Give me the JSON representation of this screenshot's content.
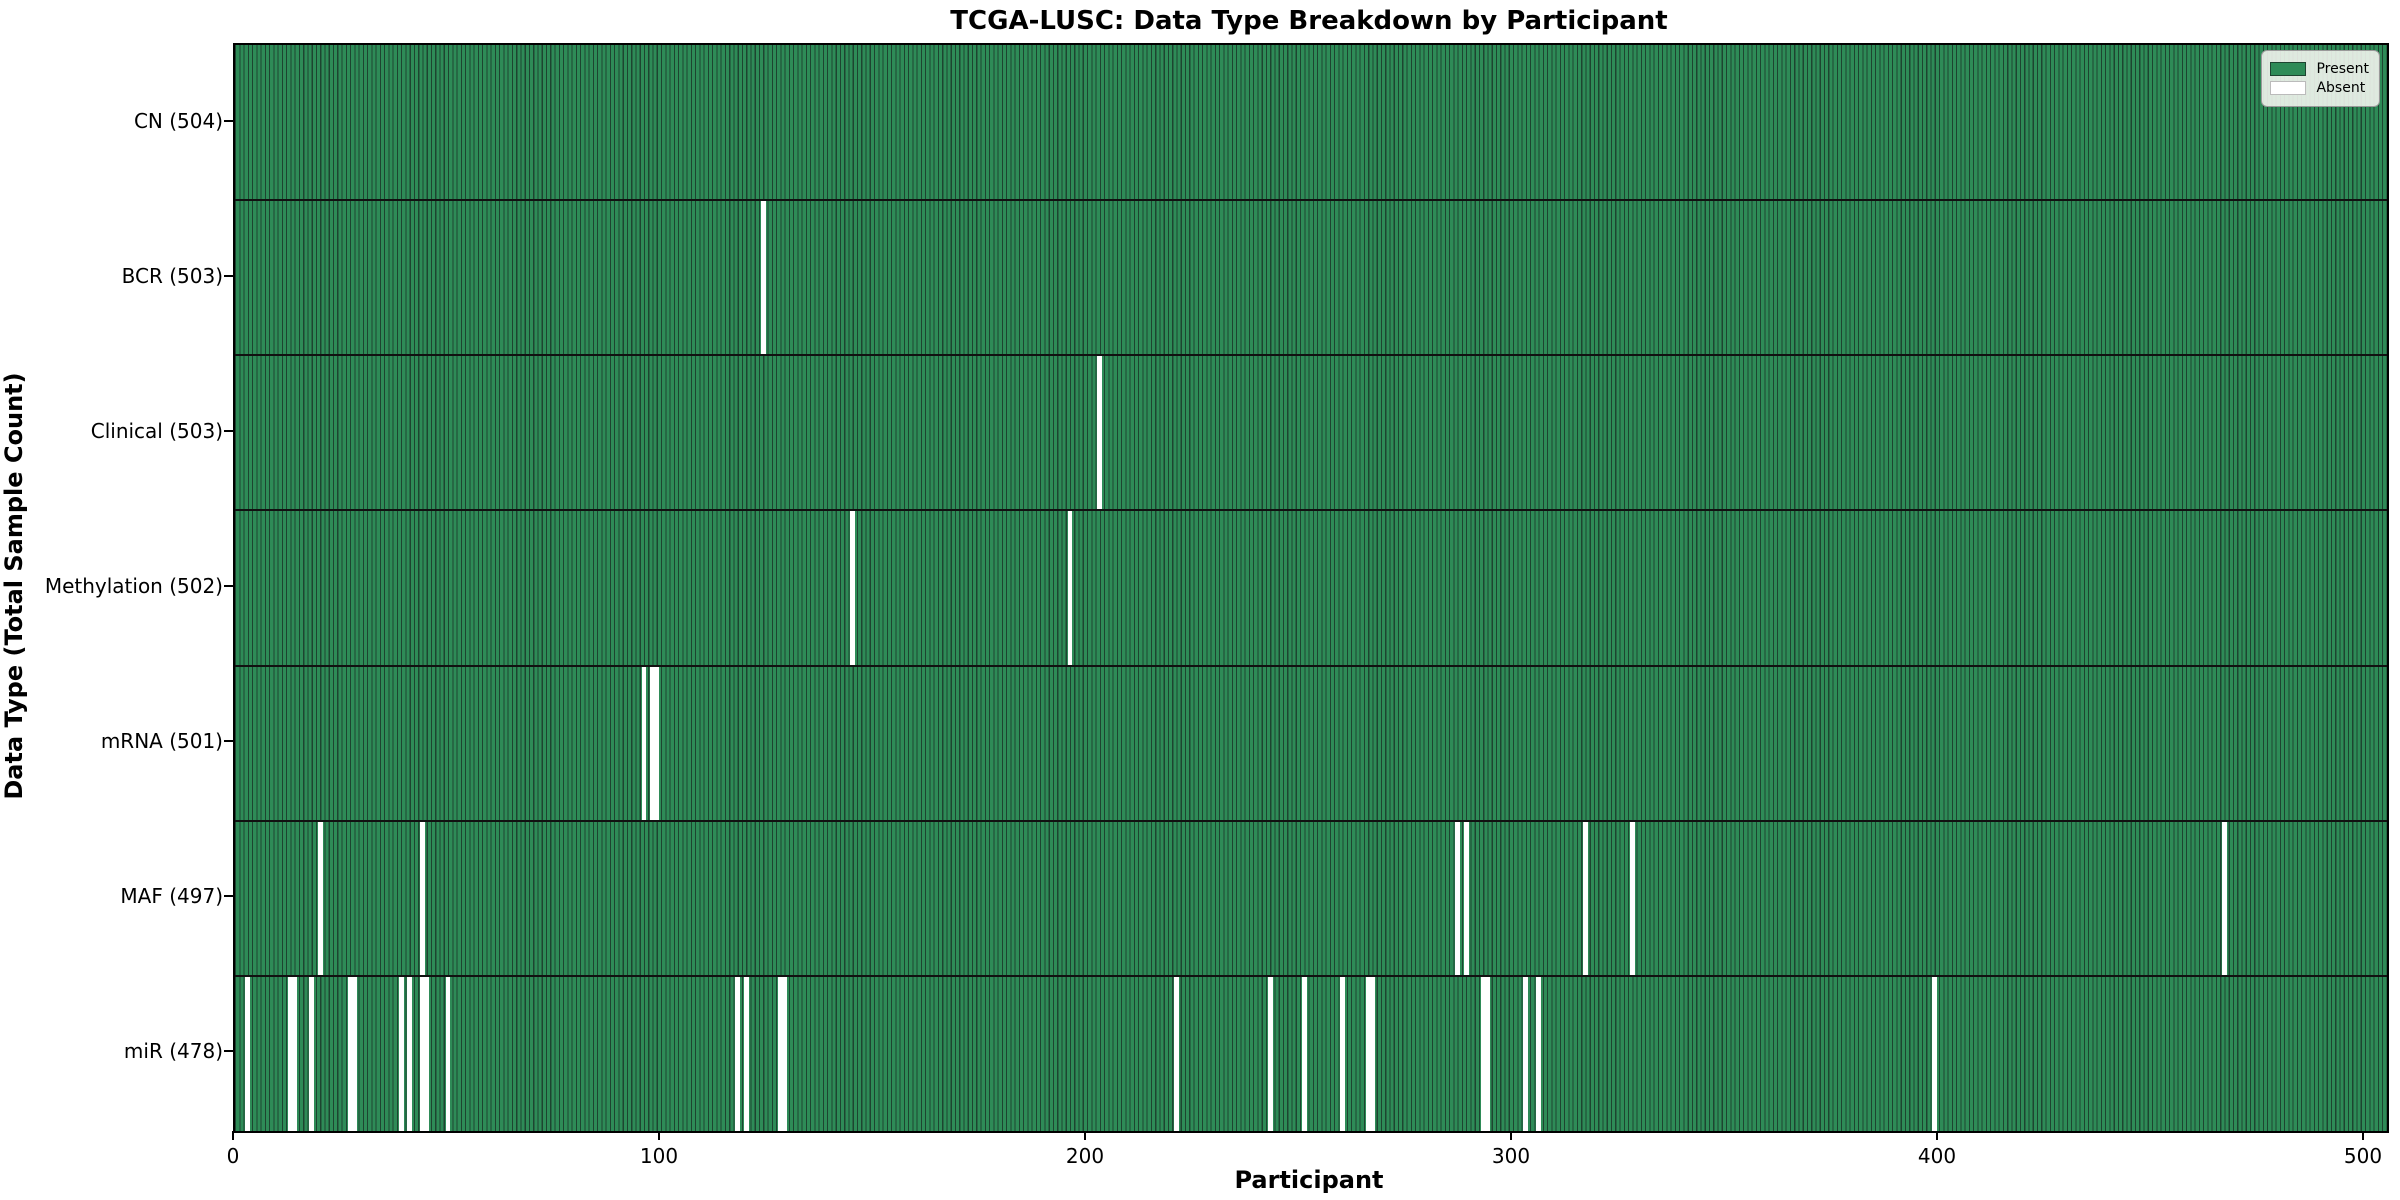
{
  "figure": {
    "title": "TCGA-LUSC: Data Type Breakdown by Participant",
    "x_axis_label": "Participant",
    "y_axis_label": "Data Type (Total Sample Count)"
  },
  "legend": {
    "items": [
      {
        "label": "Present",
        "color": "#2e8b57",
        "border": "#1d4430"
      },
      {
        "label": "Absent",
        "color": "#ffffff",
        "border": "#bbbbbb"
      }
    ]
  },
  "colors": {
    "present": "#2e8b57",
    "absent": "#ffffff",
    "bar_edge": "#1d4430",
    "row_separator": "#111111",
    "spine": "#000000"
  },
  "chart_data": {
    "type": "heatmap",
    "title": "TCGA-LUSC: Data Type Breakdown by Participant",
    "xlabel": "Participant",
    "ylabel": "Data Type (Total Sample Count)",
    "legend": [
      "Present",
      "Absent"
    ],
    "legend_position": "upper right",
    "n_participants": 504,
    "xlim": [
      0,
      505
    ],
    "x_ticks": [
      0,
      100,
      200,
      300,
      400,
      500
    ],
    "grid": false,
    "rows": [
      {
        "name": "CN",
        "total": 504,
        "label": "CN (504)",
        "absent_participants": []
      },
      {
        "name": "BCR",
        "total": 503,
        "label": "BCR (503)",
        "absent_participants": [
          124
        ]
      },
      {
        "name": "Clinical",
        "total": 503,
        "label": "Clinical (503)",
        "absent_participants": [
          203
        ]
      },
      {
        "name": "Methylation",
        "total": 502,
        "label": "Methylation (502)",
        "absent_participants": [
          145,
          196
        ]
      },
      {
        "name": "mRNA",
        "total": 501,
        "label": "mRNA (501)",
        "absent_participants": [
          96,
          98,
          99
        ]
      },
      {
        "name": "MAF",
        "total": 497,
        "label": "MAF (497)",
        "absent_participants": [
          20,
          44,
          287,
          289,
          317,
          328,
          467
        ]
      },
      {
        "name": "miR",
        "total": 478,
        "label": "miR (478)",
        "absent_participants": [
          3,
          13,
          14,
          18,
          27,
          28,
          39,
          41,
          44,
          45,
          50,
          118,
          120,
          128,
          129,
          221,
          243,
          251,
          260,
          266,
          267,
          293,
          294,
          303,
          306,
          399
        ]
      }
    ]
  }
}
